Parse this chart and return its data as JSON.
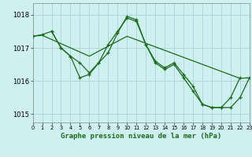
{
  "title": "Graphe pression niveau de la mer (hPa)",
  "bg_color": "#cff0f0",
  "grid_color": "#b0d8d8",
  "line_color": "#1a6b1a",
  "x_min": 0,
  "x_max": 23,
  "y_min": 1014.75,
  "y_max": 1018.35,
  "yticks": [
    1015,
    1016,
    1017,
    1018
  ],
  "xticks": [
    0,
    1,
    2,
    3,
    4,
    5,
    6,
    7,
    8,
    9,
    10,
    11,
    12,
    13,
    14,
    15,
    16,
    17,
    18,
    19,
    20,
    21,
    22,
    23
  ],
  "line_spiky_x": [
    2,
    3,
    4,
    5,
    6,
    7,
    8,
    9,
    10,
    11,
    12,
    13,
    14,
    15,
    16,
    17,
    18,
    19,
    20,
    21,
    22
  ],
  "line_spiky_y": [
    1017.5,
    1017.0,
    1016.75,
    1016.55,
    1016.25,
    1016.55,
    1016.85,
    1017.45,
    1017.95,
    1017.85,
    1017.1,
    1016.6,
    1016.4,
    1016.55,
    1016.2,
    1015.85,
    1015.3,
    1015.2,
    1015.2,
    1015.5,
    1016.1
  ],
  "line_main_x": [
    0,
    1,
    2,
    3,
    4,
    5,
    6,
    7,
    8,
    9,
    10,
    11,
    12,
    13,
    14,
    15,
    16,
    17,
    18,
    19,
    20,
    21,
    22,
    23
  ],
  "line_main_y": [
    1017.35,
    1017.4,
    1017.5,
    1017.0,
    1016.75,
    1016.1,
    1016.2,
    1016.55,
    1017.1,
    1017.5,
    1017.9,
    1017.8,
    1017.1,
    1016.55,
    1016.35,
    1016.5,
    1016.1,
    1015.7,
    1015.3,
    1015.2,
    1015.2,
    1015.2,
    1015.5,
    1016.1
  ],
  "line_trend_x": [
    0,
    1,
    6,
    10,
    22,
    23
  ],
  "line_trend_y": [
    1017.35,
    1017.38,
    1016.75,
    1017.35,
    1016.08,
    1016.1
  ]
}
